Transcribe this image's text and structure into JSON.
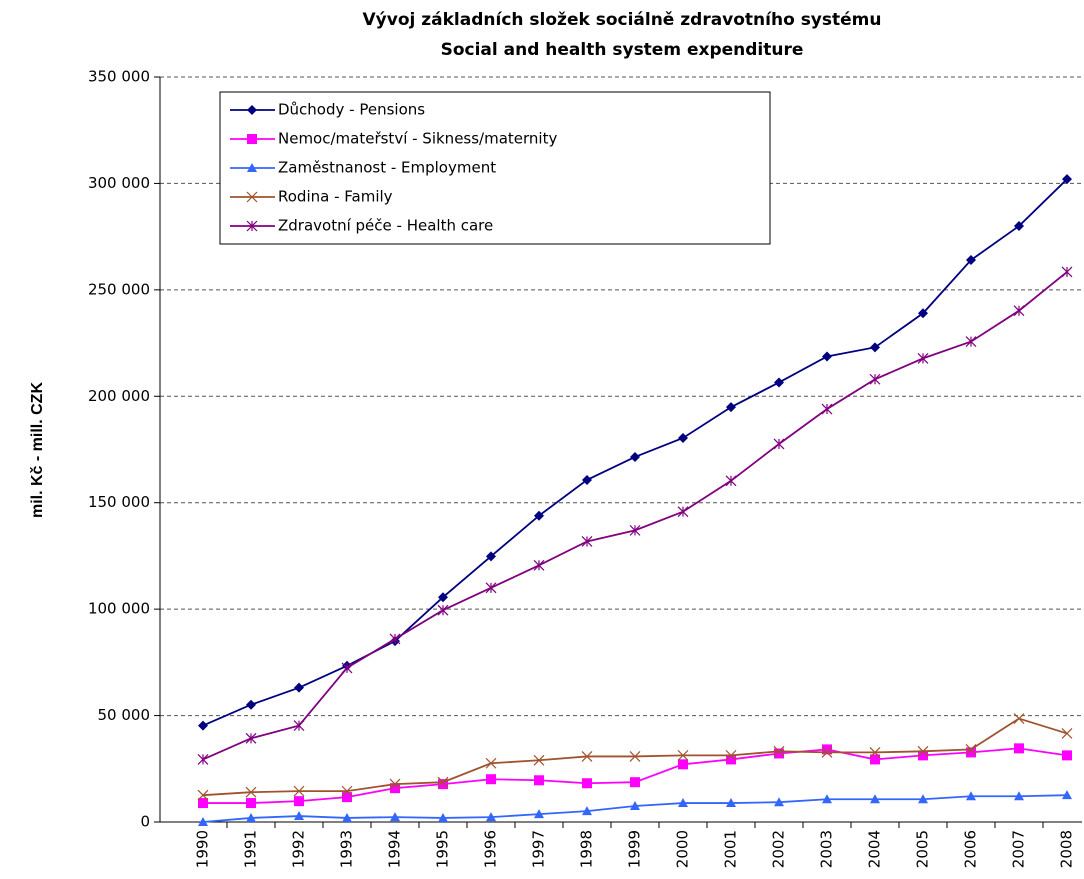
{
  "chart_data": {
    "type": "line",
    "title": [
      "Vývoj základních složek sociálně zdravotního systému",
      "Social and health system expenditure"
    ],
    "ylabel": "mil. Kč - mill. CZK",
    "categories": [
      "1990",
      "1991",
      "1992",
      "1993",
      "1994",
      "1995",
      "1996",
      "1997",
      "1998",
      "1999",
      "2000",
      "2001",
      "2002",
      "2003",
      "2004",
      "2005",
      "2006",
      "2007",
      "2008"
    ],
    "ylim": [
      0,
      350000
    ],
    "yticks": [
      0,
      {
        "value": 50000,
        "label": "50 000"
      },
      {
        "value": 100000,
        "label": "100 000"
      },
      {
        "value": 150000,
        "label": "150 000"
      },
      {
        "value": 200000,
        "label": "200 000"
      },
      {
        "value": 250000,
        "label": "250 000"
      },
      {
        "value": 300000,
        "label": "300 000"
      },
      {
        "value": 350000,
        "label": "350 000"
      }
    ],
    "grid": true,
    "legend": "upper left",
    "series": [
      {
        "name": "Důchody - Pensions",
        "color": "#000080",
        "marker": "diamond",
        "values": [
          45300,
          55100,
          63100,
          73400,
          85000,
          105600,
          124800,
          143900,
          160700,
          171500,
          180400,
          194900,
          206500,
          218700,
          223000,
          239000,
          264000,
          280000,
          302000
        ]
      },
      {
        "name": "Nemoc/mateřství - Sikness/maternity",
        "color": "#ff00ff",
        "marker": "square",
        "values": [
          8900,
          8900,
          9800,
          11700,
          15900,
          17800,
          20100,
          19600,
          18200,
          18700,
          27100,
          29400,
          32200,
          34100,
          29400,
          31300,
          32700,
          34600,
          31300
        ]
      },
      {
        "name": "Zaměstnanost - Employment",
        "color": "#3366ff",
        "marker": "triangle",
        "values": [
          0,
          1900,
          2800,
          1900,
          2300,
          1900,
          2300,
          3700,
          5100,
          7500,
          8900,
          8900,
          9300,
          10700,
          10700,
          10700,
          12100,
          12100,
          12600
        ]
      },
      {
        "name": "Rodina - Family",
        "color": "#a0522d",
        "marker": "x",
        "values": [
          12600,
          14000,
          14500,
          14500,
          17800,
          18700,
          27600,
          29000,
          30800,
          30800,
          31300,
          31300,
          33200,
          32700,
          32700,
          33200,
          34100,
          48600,
          41600
        ]
      },
      {
        "name": "Zdravotní péče - Health care",
        "color": "#800080",
        "marker": "star",
        "values": [
          29400,
          39300,
          45300,
          72400,
          86000,
          99500,
          110000,
          120600,
          131800,
          137000,
          145800,
          160300,
          177600,
          194000,
          208000,
          217800,
          225700,
          240200,
          258400
        ]
      }
    ]
  }
}
